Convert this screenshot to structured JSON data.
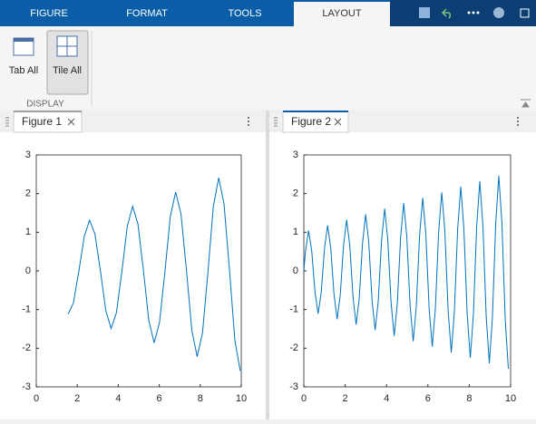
{
  "tabs": [
    "FIGURE",
    "FORMAT",
    "TOOLS",
    "LAYOUT"
  ],
  "ribbon": {
    "buttons": [
      "Tab All",
      "Tile All"
    ],
    "section": "DISPLAY"
  },
  "panels": [
    {
      "title": "Figure 1"
    },
    {
      "title": "Figure 2"
    }
  ],
  "chart_data": [
    {
      "type": "line",
      "color": "#0072bd",
      "x": [
        1.55,
        1.81,
        2.08,
        2.34,
        2.6,
        2.86,
        3.13,
        3.39,
        3.65,
        3.91,
        4.18,
        4.44,
        4.7,
        4.96,
        5.23,
        5.49,
        5.75,
        6.01,
        6.28,
        6.54,
        6.8,
        7.06,
        7.33,
        7.59,
        7.85,
        8.11,
        8.38,
        8.64,
        8.9,
        9.16,
        9.43,
        9.69,
        9.95
      ],
      "values": [
        -1.12,
        -0.83,
        0,
        0.89,
        1.31,
        0.96,
        0,
        -1.02,
        -1.49,
        -1.08,
        0,
        1.15,
        1.67,
        1.21,
        0,
        -1.28,
        -1.86,
        -1.34,
        0,
        1.41,
        2.04,
        1.47,
        0,
        -1.54,
        -2.22,
        -1.6,
        0,
        1.67,
        2.41,
        1.73,
        0,
        -1.8,
        -2.59
      ],
      "xlim": [
        0,
        10
      ],
      "ylim": [
        -3,
        3
      ],
      "xticks": [
        0,
        2,
        4,
        6,
        8,
        10
      ],
      "yticks": [
        -3,
        -2,
        -1,
        0,
        1,
        2,
        3
      ]
    },
    {
      "type": "line",
      "color": "#0072bd",
      "x": [
        0,
        0.08,
        0.23,
        0.38,
        0.54,
        0.69,
        0.84,
        1.0,
        1.15,
        1.3,
        1.46,
        1.61,
        1.76,
        1.92,
        2.07,
        2.22,
        2.38,
        2.53,
        2.68,
        2.84,
        2.99,
        3.14,
        3.3,
        3.45,
        3.6,
        3.76,
        3.91,
        4.06,
        4.22,
        4.37,
        4.52,
        4.68,
        4.83,
        4.98,
        5.14,
        5.29,
        5.44,
        5.6,
        5.75,
        5.9,
        6.06,
        6.21,
        6.36,
        6.52,
        6.67,
        6.82,
        6.98,
        7.13,
        7.28,
        7.44,
        7.59,
        7.74,
        7.9,
        8.05,
        8.2,
        8.36,
        8.51,
        8.66,
        8.82,
        8.97,
        9.12,
        9.28,
        9.43,
        9.58,
        9.74,
        9.89
      ],
      "values": [
        0,
        0.51,
        1.04,
        0.53,
        -0.54,
        -1.11,
        -0.57,
        0.58,
        1.18,
        0.6,
        -0.61,
        -1.25,
        -0.64,
        0.65,
        1.32,
        0.67,
        -0.68,
        -1.39,
        -0.71,
        0.72,
        1.46,
        0.74,
        -0.76,
        -1.53,
        -0.78,
        0.79,
        1.61,
        0.81,
        -0.83,
        -1.68,
        -0.85,
        0.86,
        1.75,
        0.89,
        -0.9,
        -1.82,
        -0.92,
        0.93,
        1.89,
        0.96,
        -0.97,
        -1.96,
        -0.99,
        1.01,
        2.03,
        1.03,
        -1.04,
        -2.11,
        -1.06,
        1.08,
        2.18,
        1.1,
        -1.11,
        -2.25,
        -1.14,
        1.15,
        2.32,
        1.17,
        -1.18,
        -2.39,
        -1.21,
        1.22,
        2.46,
        1.24,
        -1.25,
        -2.53
      ],
      "xlim": [
        0,
        10
      ],
      "ylim": [
        -3,
        3
      ],
      "xticks": [
        0,
        2,
        4,
        6,
        8,
        10
      ],
      "yticks": [
        -3,
        -2,
        -1,
        0,
        1,
        2,
        3
      ]
    }
  ]
}
